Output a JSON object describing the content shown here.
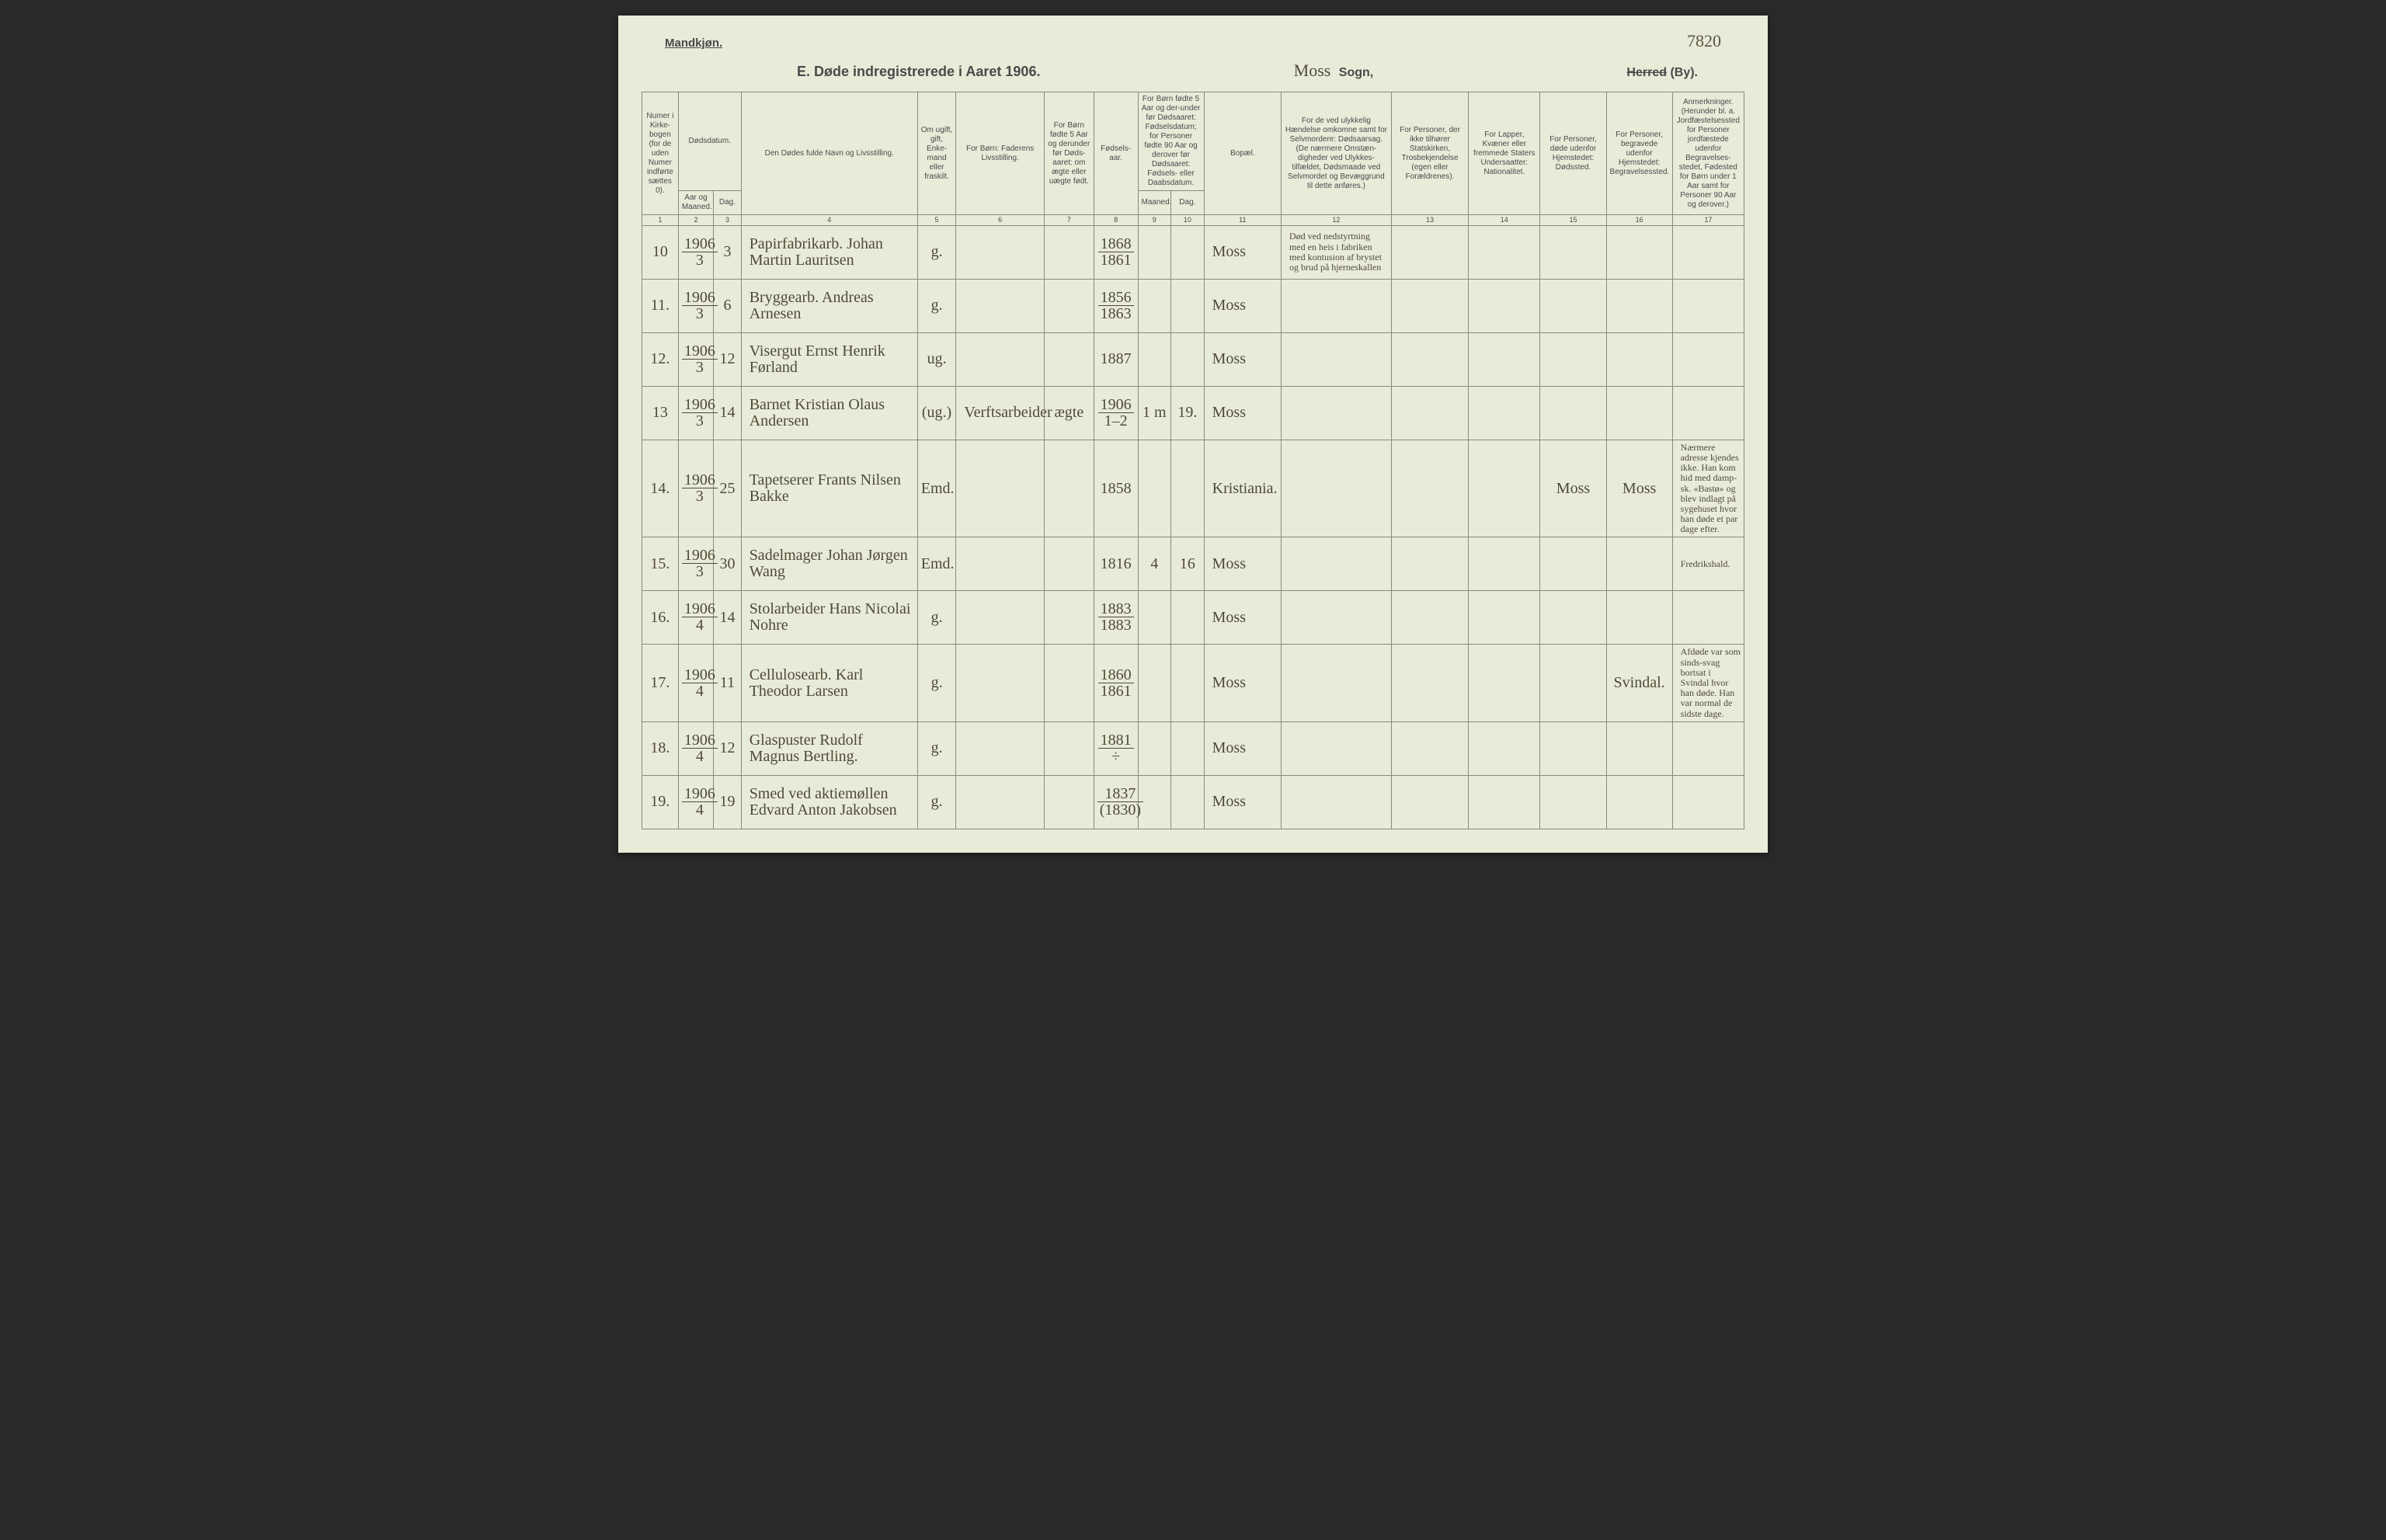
{
  "page": {
    "corner_left": "Mandkjøn.",
    "corner_right": "7820",
    "title_main": "E.  Døde indregistrerede i Aaret 1906.",
    "sogn_hand": "Moss",
    "sogn_label": "Sogn,",
    "herred_strike": "Herred",
    "herred_label": "(By)."
  },
  "headers": {
    "c1": "Numer i Kirke-bogen (for de uden Numer indførte sættes 0).",
    "c2_top": "Dødsdatum.",
    "c2a": "Aar og Maaned.",
    "c2b": "Dag.",
    "c4": "Den Dødes fulde Navn og Livsstilling.",
    "c5": "Om ugift, gift, Enke-mand eller fraskilt.",
    "c6": "For Børn: Faderens Livsstilling.",
    "c7": "For Børn fødte 5 Aar og derunder før Døds-aaret: om ægte eller uægte født.",
    "c8": "Fødsels-aar.",
    "c9_top": "For Børn fødte 5 Aar og der-under før Dødsaaret: Fødselsdatum; for Personer fødte 90 Aar og derover før Dødsaaret: Fødsels- eller Daabsdatum.",
    "c9a": "Maaned.",
    "c9b": "Dag.",
    "c11": "Bopæl.",
    "c12": "For de ved ulykkelig Hændelse omkomne samt for Selvmordere: Dødsaarsag. (De nærmere Omstæn-digheder ved Ulykkes-tilfældet, Dødsmaade ved Selvmordet og Bevæggrund til dette anføres.)",
    "c13": "For Personer, der ikke tilhører Statskirken, Trosbekjendelse (egen eller Forældrenes).",
    "c14": "For Lapper, Kvæner eller fremmede Staters Undersaatter: Nationalitet.",
    "c15": "For Personer, døde udenfor Hjemstedet: Dødssted.",
    "c16": "For Personer, begravede udenfor Hjemstedet: Begravelsessted.",
    "c17": "Anmerkninger. (Herunder bl. a. Jordfæstelsessted for Personer jordfæstede udenfor Begravelses-stedet, Fødested for Børn under 1 Aar samt for Personer 90 Aar og derover.)"
  },
  "colnums": [
    "1",
    "2",
    "3",
    "4",
    "5",
    "6",
    "7",
    "8",
    "9",
    "10",
    "11",
    "12",
    "13",
    "14",
    "15",
    "16",
    "17"
  ],
  "rows": [
    {
      "num": "10",
      "ym_top": "1906",
      "ym_bot": "3",
      "day": "3",
      "name": "Papirfabrikarb. Johan Martin Lauritsen",
      "status": "g.",
      "father": "",
      "legit": "",
      "birth_top": "1868",
      "birth_bot": "1861",
      "m": "",
      "d": "",
      "bopael": "Moss",
      "cause": "Død ved nedstyrtning med en heis i fabriken med kontusion af brystet og brud på hjerneskallen",
      "c13": "",
      "c14": "",
      "c15": "",
      "c16": "",
      "c17": ""
    },
    {
      "num": "11.",
      "ym_top": "1906",
      "ym_bot": "3",
      "day": "6",
      "name": "Bryggearb. Andreas Arnesen",
      "status": "g.",
      "father": "",
      "legit": "",
      "birth_top": "1856",
      "birth_bot": "1863",
      "m": "",
      "d": "",
      "bopael": "Moss",
      "cause": "",
      "c13": "",
      "c14": "",
      "c15": "",
      "c16": "",
      "c17": ""
    },
    {
      "num": "12.",
      "ym_top": "1906",
      "ym_bot": "3",
      "day": "12",
      "name": "Visergut Ernst Henrik Førland",
      "status": "ug.",
      "father": "",
      "legit": "",
      "birth_top": "1887",
      "birth_bot": "",
      "m": "",
      "d": "",
      "bopael": "Moss",
      "cause": "",
      "c13": "",
      "c14": "",
      "c15": "",
      "c16": "",
      "c17": ""
    },
    {
      "num": "13",
      "ym_top": "1906",
      "ym_bot": "3",
      "day": "14",
      "name": "Barnet Kristian Olaus Andersen",
      "status": "(ug.)",
      "father": "Verftsarbeider",
      "legit": "ægte",
      "birth_top": "1906",
      "birth_bot": "1–2",
      "m": "1 m",
      "d": "19.",
      "bopael": "Moss",
      "cause": "",
      "c13": "",
      "c14": "",
      "c15": "",
      "c16": "",
      "c17": ""
    },
    {
      "num": "14.",
      "ym_top": "1906",
      "ym_bot": "3",
      "day": "25",
      "name": "Tapetserer Frants Nilsen Bakke",
      "status": "Emd.",
      "father": "",
      "legit": "",
      "birth_top": "1858",
      "birth_bot": "",
      "m": "",
      "d": "",
      "bopael": "Kristiania.",
      "cause": "",
      "c13": "",
      "c14": "",
      "c15": "Moss",
      "c16": "Moss",
      "c17": "Nærmere adresse kjendes ikke. Han kom hid med damp-sk. «Bastø» og blev indlagt på sygehuset hvor han døde et par dage efter."
    },
    {
      "num": "15.",
      "ym_top": "1906",
      "ym_bot": "3",
      "day": "30",
      "name": "Sadelmager Johan Jørgen Wang",
      "status": "Emd.",
      "father": "",
      "legit": "",
      "birth_top": "1816",
      "birth_bot": "",
      "m": "4",
      "d": "16",
      "bopael": "Moss",
      "cause": "",
      "c13": "",
      "c14": "",
      "c15": "",
      "c16": "",
      "c17": "Fredrikshald."
    },
    {
      "num": "16.",
      "ym_top": "1906",
      "ym_bot": "4",
      "day": "14",
      "name": "Stolarbeider Hans Nicolai Nohre",
      "status": "g.",
      "father": "",
      "legit": "",
      "birth_top": "1883",
      "birth_bot": "1883",
      "m": "",
      "d": "",
      "bopael": "Moss",
      "cause": "",
      "c13": "",
      "c14": "",
      "c15": "",
      "c16": "",
      "c17": ""
    },
    {
      "num": "17.",
      "ym_top": "1906",
      "ym_bot": "4",
      "day": "11",
      "name": "Cellulosearb. Karl Theodor Larsen",
      "status": "g.",
      "father": "",
      "legit": "",
      "birth_top": "1860",
      "birth_bot": "1861",
      "m": "",
      "d": "",
      "bopael": "Moss",
      "cause": "",
      "c13": "",
      "c14": "",
      "c15": "",
      "c16": "Svindal.",
      "c17": "Afdøde var som sinds-svag bortsat i Svindal hvor han døde. Han var normal de sidste dage."
    },
    {
      "num": "18.",
      "ym_top": "1906",
      "ym_bot": "4",
      "day": "12",
      "name": "Glaspuster Rudolf Magnus Bertling.",
      "status": "g.",
      "father": "",
      "legit": "",
      "birth_top": "1881",
      "birth_bot": "÷",
      "m": "",
      "d": "",
      "bopael": "Moss",
      "cause": "",
      "c13": "",
      "c14": "",
      "c15": "",
      "c16": "",
      "c17": ""
    },
    {
      "num": "19.",
      "ym_top": "1906",
      "ym_bot": "4",
      "day": "19",
      "name": "Smed ved aktiemøllen Edvard Anton Jakobsen",
      "status": "g.",
      "father": "",
      "legit": "",
      "birth_top": "1837",
      "birth_bot": "(1830)",
      "m": "",
      "d": "",
      "bopael": "Moss",
      "cause": "",
      "c13": "",
      "c14": "",
      "c15": "",
      "c16": "",
      "c17": ""
    }
  ],
  "col_widths_pct": [
    3.3,
    3.2,
    2.5,
    16,
    3.5,
    8,
    4.5,
    4,
    3,
    3,
    7,
    10,
    7,
    6.5,
    6,
    6,
    6.5
  ]
}
